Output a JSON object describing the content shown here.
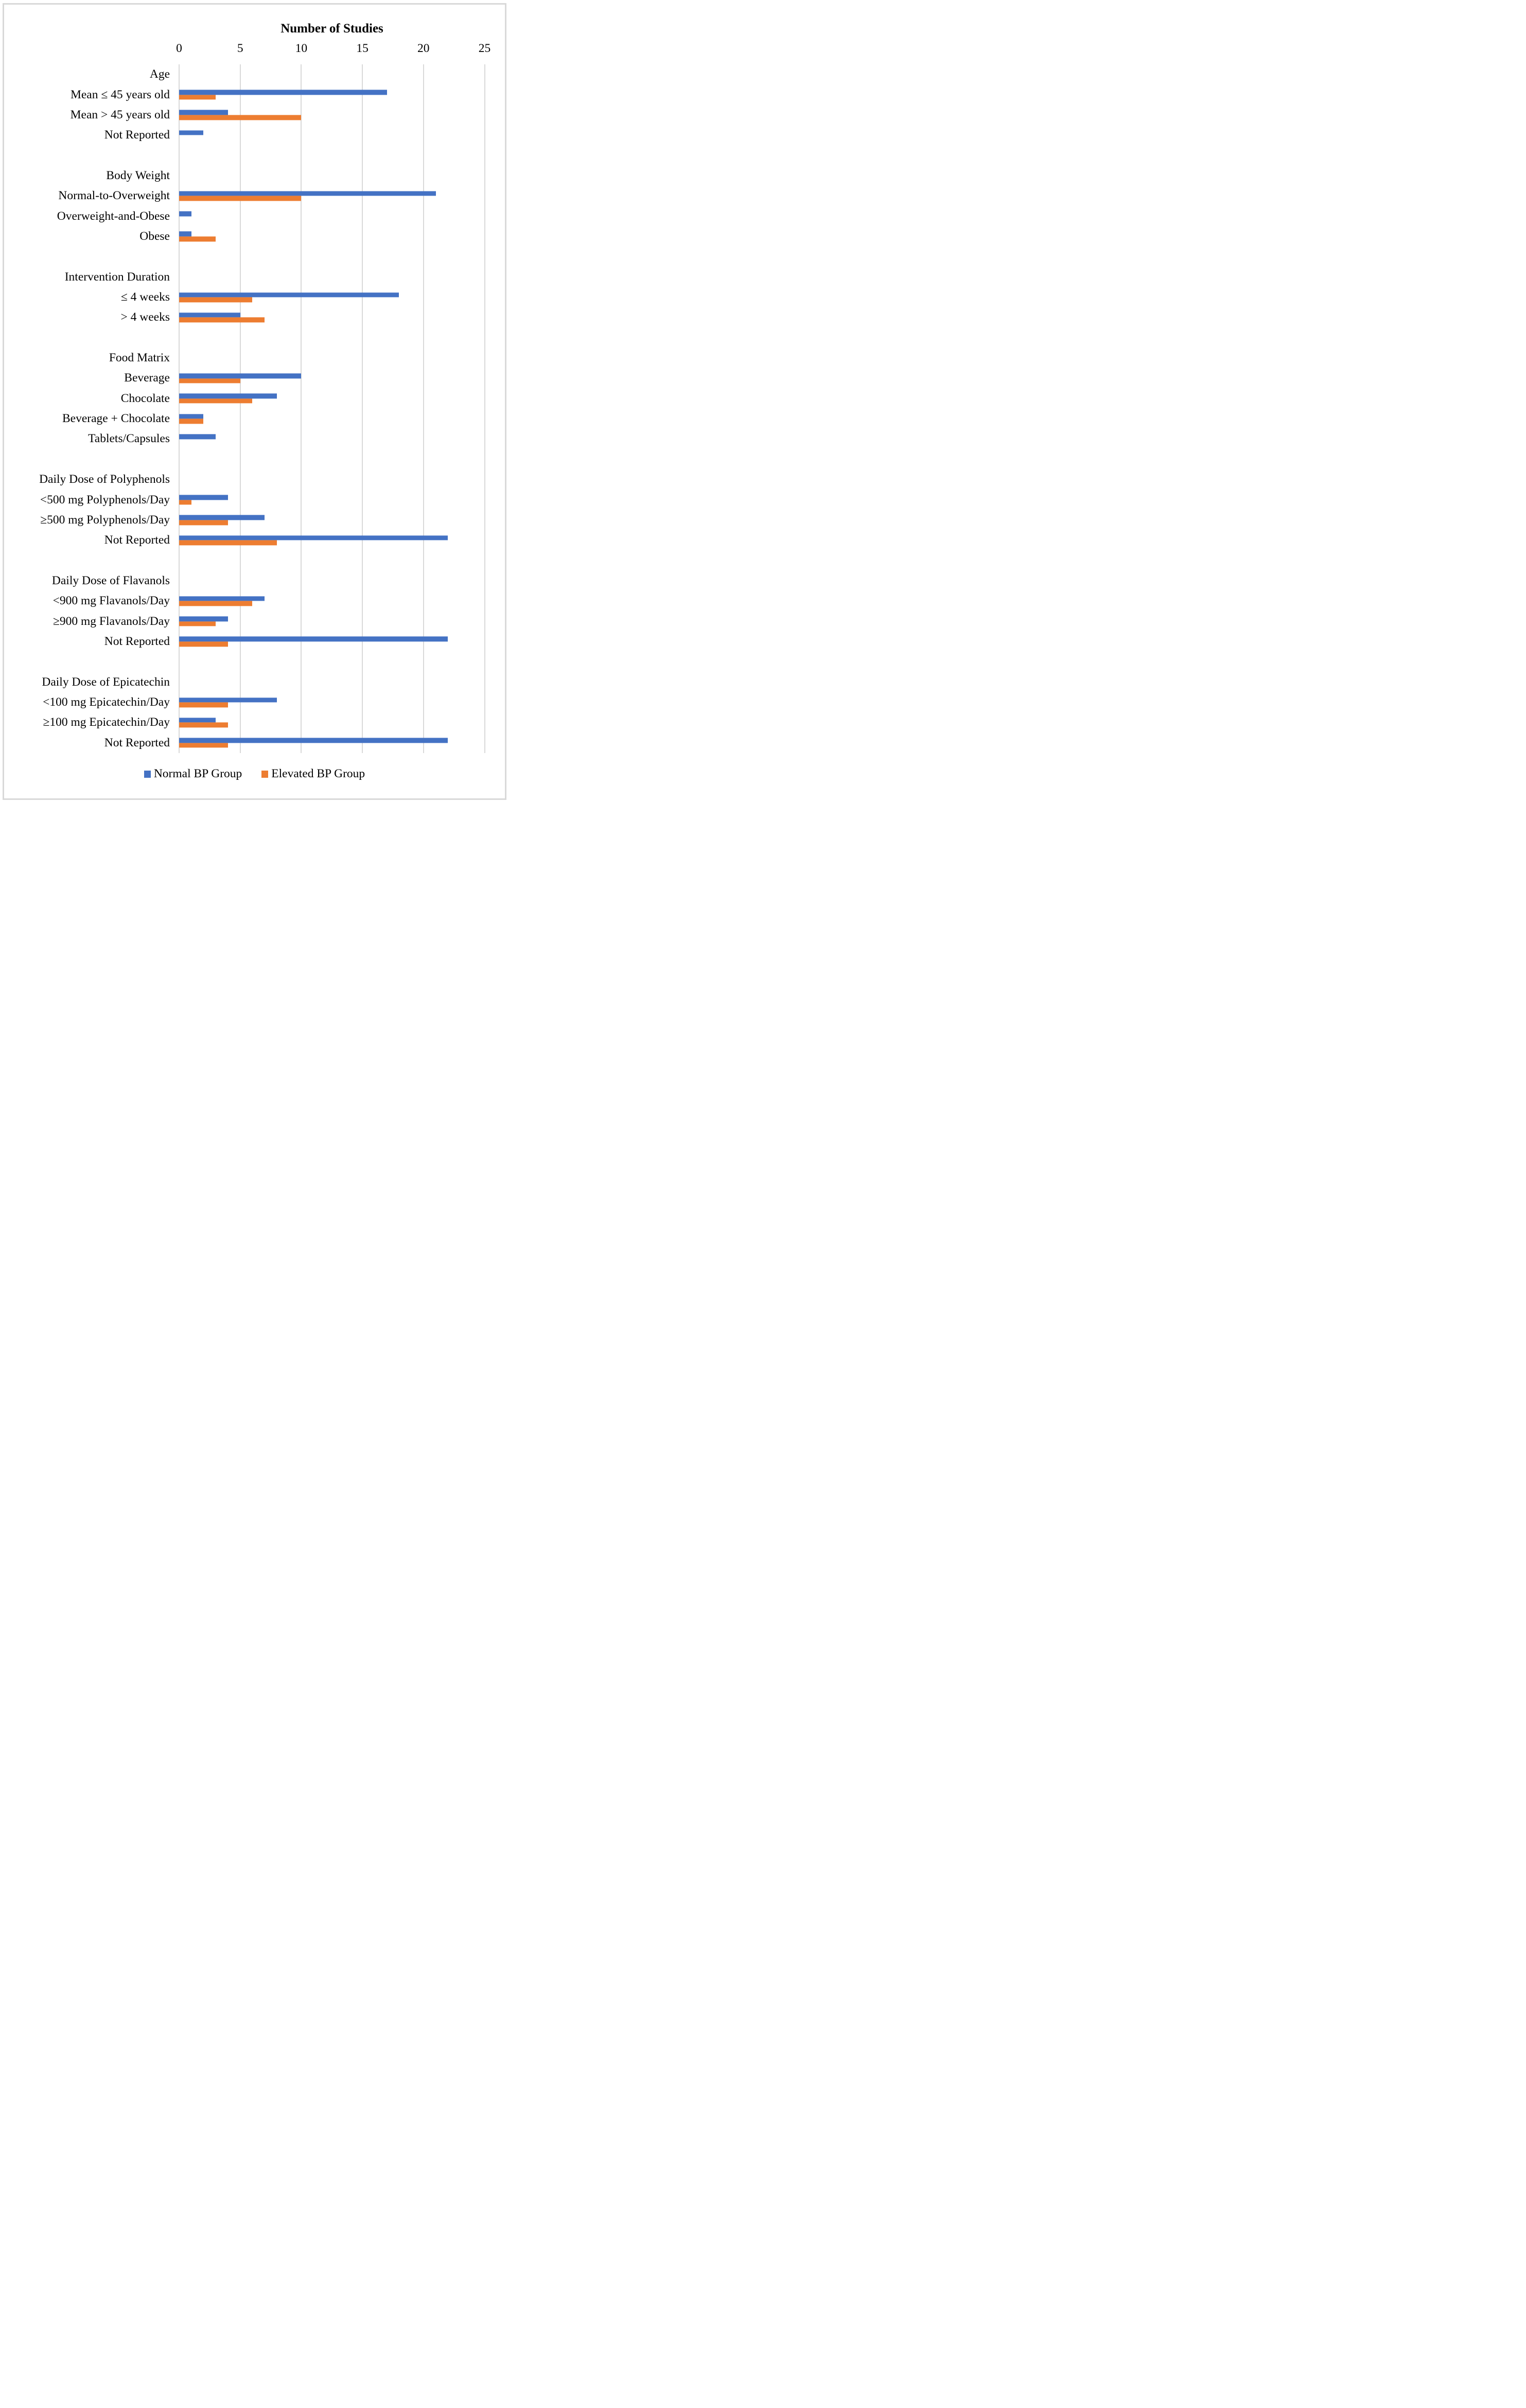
{
  "figure": {
    "legend": {
      "normal_label": "Normal BP Group",
      "elevated_label": "Elevated BP Group"
    }
  },
  "chart_data": {
    "type": "bar",
    "orientation": "horizontal",
    "title": "Number of Studies",
    "xlabel": "Number of Studies",
    "x_axis": {
      "min": 0,
      "max": 25,
      "tick_interval": 5,
      "ticks": [
        "0",
        "5",
        "10",
        "15",
        "20",
        "25"
      ],
      "grid": true
    },
    "series_names": [
      "Normal BP Group",
      "Elevated BP Group"
    ],
    "colors": {
      "normal_bp": "#4472C4",
      "elevated_bp": "#ED7D31",
      "gridline": "#D9D9D9",
      "frame": "#D9D9D9"
    },
    "legend_position": "bottom",
    "rows": [
      {
        "kind": "header",
        "label": "Age"
      },
      {
        "kind": "data",
        "label": "Mean ≤ 45 years old",
        "normal": 17,
        "elevated": 3
      },
      {
        "kind": "data",
        "label": "Mean > 45 years old",
        "normal": 4,
        "elevated": 10
      },
      {
        "kind": "data",
        "label": "Not Reported",
        "normal": 2,
        "elevated": 0
      },
      {
        "kind": "spacer",
        "label": ""
      },
      {
        "kind": "header",
        "label": "Body Weight"
      },
      {
        "kind": "data",
        "label": "Normal-to-Overweight",
        "normal": 21,
        "elevated": 10
      },
      {
        "kind": "data",
        "label": "Overweight-and-Obese",
        "normal": 1,
        "elevated": 0
      },
      {
        "kind": "data",
        "label": "Obese",
        "normal": 1,
        "elevated": 3
      },
      {
        "kind": "spacer",
        "label": ""
      },
      {
        "kind": "header",
        "label": "Intervention Duration"
      },
      {
        "kind": "data",
        "label": "≤ 4 weeks",
        "normal": 18,
        "elevated": 6
      },
      {
        "kind": "data",
        "label": "> 4 weeks",
        "normal": 5,
        "elevated": 7
      },
      {
        "kind": "spacer",
        "label": ""
      },
      {
        "kind": "header",
        "label": "Food Matrix"
      },
      {
        "kind": "data",
        "label": "Beverage",
        "normal": 10,
        "elevated": 5
      },
      {
        "kind": "data",
        "label": "Chocolate",
        "normal": 8,
        "elevated": 6
      },
      {
        "kind": "data",
        "label": "Beverage + Chocolate",
        "normal": 2,
        "elevated": 2
      },
      {
        "kind": "data",
        "label": "Tablets/Capsules",
        "normal": 3,
        "elevated": 0
      },
      {
        "kind": "spacer",
        "label": ""
      },
      {
        "kind": "header",
        "label": "Daily Dose of Polyphenols"
      },
      {
        "kind": "data",
        "label": "<500 mg Polyphenols/Day",
        "normal": 4,
        "elevated": 1
      },
      {
        "kind": "data",
        "label": "≥500 mg Polyphenols/Day",
        "normal": 7,
        "elevated": 4
      },
      {
        "kind": "data",
        "label": "Not Reported",
        "normal": 22,
        "elevated": 8
      },
      {
        "kind": "spacer",
        "label": ""
      },
      {
        "kind": "header",
        "label": "Daily Dose of Flavanols"
      },
      {
        "kind": "data",
        "label": "<900 mg Flavanols/Day",
        "normal": 7,
        "elevated": 6
      },
      {
        "kind": "data",
        "label": "≥900 mg Flavanols/Day",
        "normal": 4,
        "elevated": 3
      },
      {
        "kind": "data",
        "label": "Not Reported",
        "normal": 22,
        "elevated": 4
      },
      {
        "kind": "spacer",
        "label": ""
      },
      {
        "kind": "header",
        "label": "Daily Dose of Epicatechin"
      },
      {
        "kind": "data",
        "label": "<100 mg Epicatechin/Day",
        "normal": 8,
        "elevated": 4
      },
      {
        "kind": "data",
        "label": "≥100 mg Epicatechin/Day",
        "normal": 3,
        "elevated": 4
      },
      {
        "kind": "data",
        "label": "Not Reported",
        "normal": 22,
        "elevated": 4
      }
    ]
  }
}
